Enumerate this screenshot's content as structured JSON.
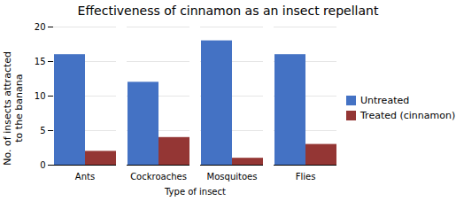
{
  "chart_data": {
    "type": "bar",
    "title": "Effectiveness of cinnamon as an insect repellant",
    "xlabel": "Type of insect",
    "ylabel": "No. of insects attracted\nto the banana",
    "categories": [
      "Ants",
      "Cockroaches",
      "Mosquitoes",
      "Flies"
    ],
    "series": [
      {
        "name": "Untreated",
        "color": "#4472C4",
        "values": [
          16,
          12,
          18,
          16
        ]
      },
      {
        "name": "Treated (cinnamon)",
        "color": "#943634",
        "values": [
          2,
          4,
          1,
          3
        ]
      }
    ],
    "ylim": [
      0,
      20
    ],
    "yticks": [
      0,
      5,
      10,
      15,
      20
    ],
    "grid": true,
    "legend": "right"
  }
}
